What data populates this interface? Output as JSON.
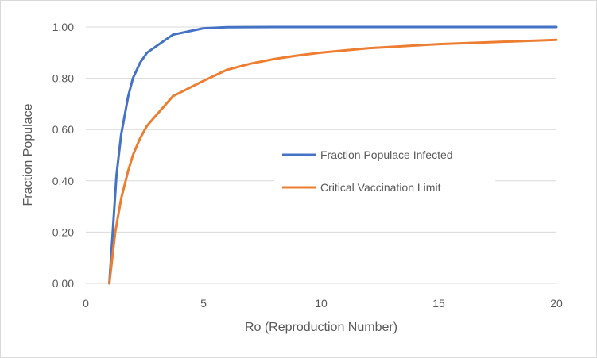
{
  "chart_data": {
    "type": "line",
    "title": "",
    "xlabel": "Ro (Reproduction Number)",
    "ylabel": "Fraction Populace",
    "xlim": [
      0,
      20
    ],
    "ylim": [
      0,
      1
    ],
    "x_ticks": [
      "0",
      "5",
      "10",
      "15",
      "20"
    ],
    "y_ticks": [
      "0.00",
      "0.20",
      "0.40",
      "0.60",
      "0.80",
      "1.00"
    ],
    "grid": "horizontal",
    "legend_position": "center-right",
    "series": [
      {
        "name": "Fraction Populace Infected",
        "color": "#4472c4",
        "x": [
          1.0,
          1.3,
          1.5,
          1.8,
          2.0,
          2.3,
          2.6,
          3.7,
          5.0,
          6.0,
          8.0,
          10.0,
          15.0,
          20.0
        ],
        "y": [
          0.0,
          0.42,
          0.58,
          0.73,
          0.8,
          0.86,
          0.9,
          0.97,
          0.995,
          0.999,
          1.0,
          1.0,
          1.0,
          1.0
        ]
      },
      {
        "name": "Critical Vaccination Limit",
        "color": "#ed7d31",
        "x": [
          1.0,
          1.25,
          1.5,
          1.8,
          2.0,
          2.3,
          2.6,
          3.7,
          5.0,
          6.0,
          7.0,
          8.0,
          9.0,
          10.0,
          12.0,
          15.0,
          20.0
        ],
        "y": [
          0.0,
          0.2,
          0.33,
          0.44,
          0.5,
          0.565,
          0.615,
          0.73,
          0.79,
          0.833,
          0.857,
          0.875,
          0.889,
          0.9,
          0.917,
          0.933,
          0.95
        ]
      }
    ]
  }
}
